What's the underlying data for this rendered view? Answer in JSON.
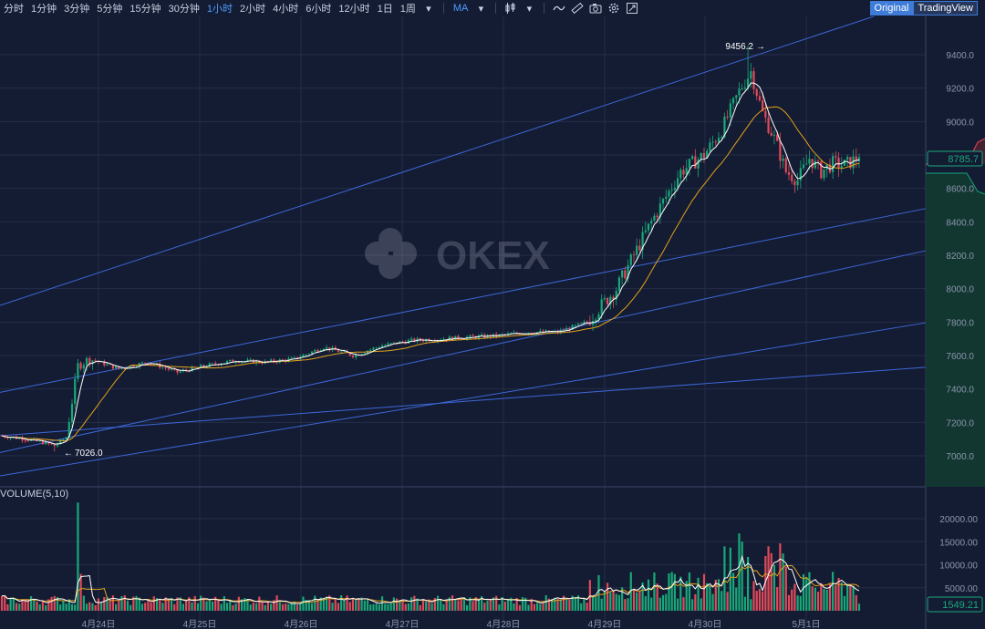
{
  "toolbar": {
    "timeframes": [
      "分时",
      "1分钟",
      "3分钟",
      "5分钟",
      "15分钟",
      "30分钟",
      "1小时",
      "2小时",
      "4小时",
      "6小时",
      "12小时",
      "1日",
      "1周"
    ],
    "active_timeframe": "1小时",
    "indicator_label": "MA",
    "view_original": "Original",
    "view_tradingview": "TradingView",
    "icons": [
      "chevron-down-icon",
      "candlestick-icon",
      "line-tool-icon",
      "ruler-icon",
      "camera-icon",
      "gear-icon",
      "fullscreen-icon"
    ]
  },
  "watermark": "OKEX",
  "colors": {
    "up": "#18a879",
    "down": "#e24a5a",
    "ma_fast": "#ffffff",
    "ma_slow": "#e3a21a",
    "channel": "#3d67d8",
    "bg": "#141c33",
    "grid": "#242d48"
  },
  "price_axis": {
    "ticks": [
      "9400.0",
      "9200.0",
      "9000.0",
      "8800.0",
      "8600.0",
      "8400.0",
      "8200.0",
      "8000.0",
      "7800.0",
      "7600.0",
      "7400.0",
      "7200.0",
      "7000.0"
    ],
    "current_price": "8785.7"
  },
  "volume_axis": {
    "title": "VOLUME(5,10)",
    "ticks": [
      "20000.00",
      "15000.00",
      "10000.00",
      "5000.00"
    ],
    "current_volume": "1549.21"
  },
  "date_axis": [
    "4月24日",
    "4月25日",
    "4月26日",
    "4月27日",
    "4月28日",
    "4月29日",
    "4月30日",
    "5月1日"
  ],
  "annotations": {
    "high": "9456.2",
    "low": "7026.0"
  },
  "chart_data": {
    "type": "candlestick",
    "ylim": [
      6900,
      9600
    ],
    "volume_ylim": [
      0,
      24000
    ],
    "anchors": [
      [
        0,
        7120
      ],
      [
        8,
        7100
      ],
      [
        14,
        7080
      ],
      [
        18,
        7060
      ],
      [
        22,
        7110
      ],
      [
        26,
        7540
      ],
      [
        30,
        7580
      ],
      [
        40,
        7520
      ],
      [
        50,
        7560
      ],
      [
        60,
        7500
      ],
      [
        70,
        7540
      ],
      [
        80,
        7570
      ],
      [
        90,
        7560
      ],
      [
        100,
        7580
      ],
      [
        110,
        7650
      ],
      [
        120,
        7600
      ],
      [
        130,
        7660
      ],
      [
        140,
        7690
      ],
      [
        150,
        7700
      ],
      [
        160,
        7710
      ],
      [
        170,
        7720
      ],
      [
        180,
        7740
      ],
      [
        190,
        7740
      ],
      [
        200,
        7800
      ],
      [
        210,
        8000
      ],
      [
        222,
        8400
      ],
      [
        232,
        8700
      ],
      [
        240,
        8800
      ],
      [
        246,
        8950
      ],
      [
        252,
        9180
      ],
      [
        256,
        9300
      ],
      [
        260,
        9050
      ],
      [
        264,
        8900
      ],
      [
        268,
        8700
      ],
      [
        272,
        8650
      ],
      [
        276,
        8780
      ],
      [
        280,
        8700
      ],
      [
        284,
        8750
      ],
      [
        288,
        8740
      ],
      [
        293,
        8785.7
      ]
    ],
    "high": 9456.2,
    "low": 7026.0,
    "last_price": 8785.7,
    "last_volume": 1549.21
  }
}
